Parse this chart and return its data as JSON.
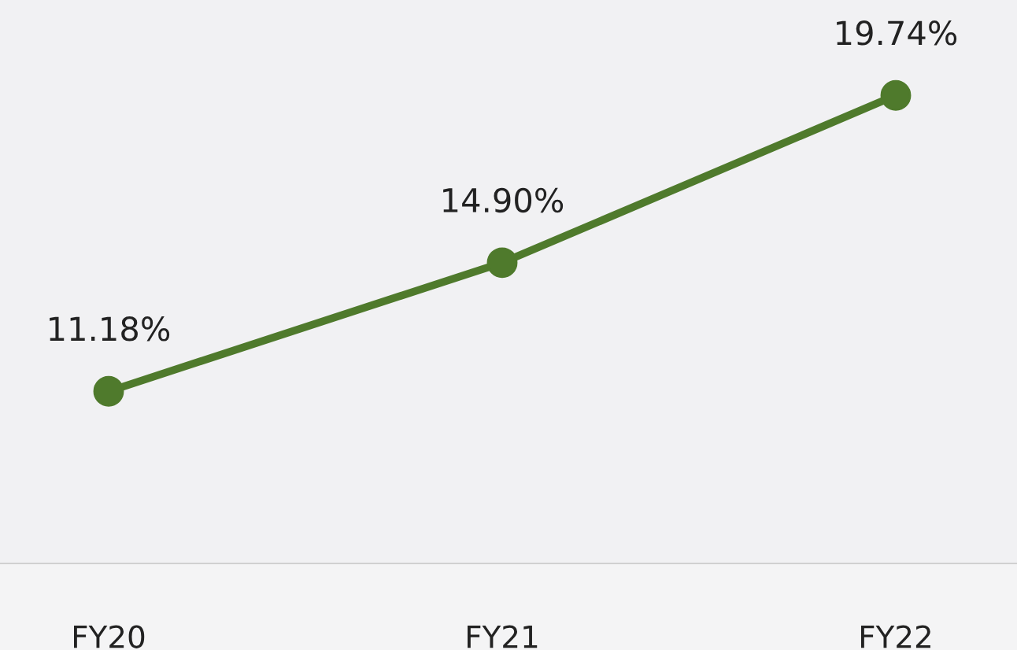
{
  "chart_data": {
    "type": "line",
    "categories": [
      "FY20",
      "FY21",
      "FY22"
    ],
    "series": [
      {
        "color": "#4f7a2c",
        "values": [
          11.18,
          14.9,
          19.74
        ],
        "value_labels": [
          "11.18%",
          "14.90%",
          "19.74%"
        ]
      }
    ],
    "ylim": [
      6.2,
      22.5
    ],
    "marker": "circle",
    "line_style": "solid",
    "grid": false,
    "legend": false
  }
}
